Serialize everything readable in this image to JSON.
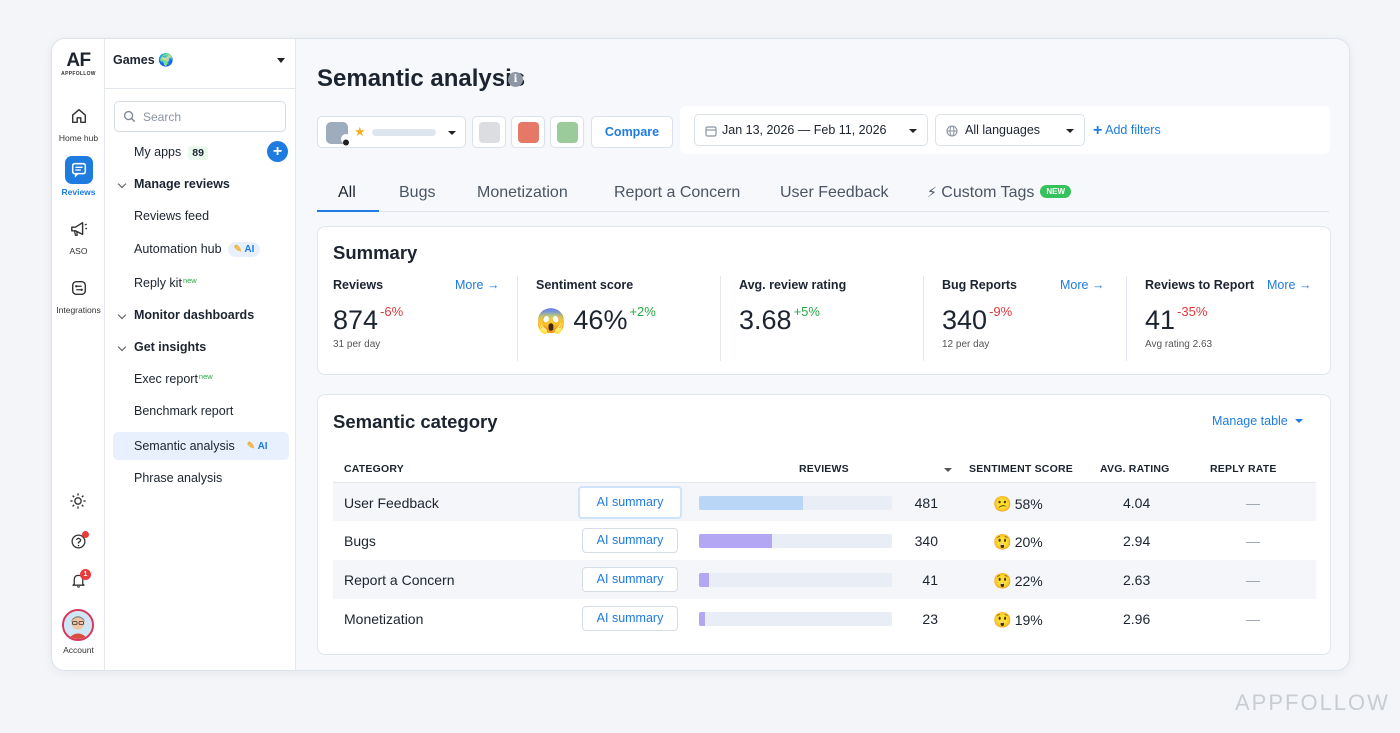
{
  "rail": {
    "logo": "AF",
    "logo_sub": "APPFOLLOW",
    "items": [
      {
        "label": "Home hub"
      },
      {
        "label": "Reviews"
      },
      {
        "label": "ASO"
      },
      {
        "label": "Integrations"
      }
    ],
    "notifications_count": "1",
    "account_label": "Account"
  },
  "sidebar": {
    "workspace": "Games 🌍",
    "search_placeholder": "Search",
    "my_apps": "My apps",
    "my_apps_count": "89",
    "manage_reviews": "Manage reviews",
    "reviews_feed": "Reviews feed",
    "automation_hub": "Automation hub",
    "reply_kit": "Reply kit",
    "monitor_dashboards": "Monitor dashboards",
    "get_insights": "Get insights",
    "exec_report": "Exec report",
    "benchmark_report": "Benchmark report",
    "semantic_analysis": "Semantic analysis",
    "phrase_analysis": "Phrase analysis",
    "new_tag": "new",
    "ai_tag": "AI"
  },
  "header": {
    "title": "Semantic analysis",
    "compare": "Compare",
    "date_range": "Jan 13, 2026 — Feb 11, 2026",
    "language": "All languages",
    "add_filters": "Add filters"
  },
  "tabs": [
    {
      "label": "All"
    },
    {
      "label": "Bugs"
    },
    {
      "label": "Monetization"
    },
    {
      "label": "Report a Concern"
    },
    {
      "label": "User Feedback"
    },
    {
      "label": "Custom Tags"
    }
  ],
  "tabs_new_badge": "NEW",
  "summary": {
    "title": "Summary",
    "more": "More",
    "metrics": [
      {
        "label": "Reviews",
        "value": "874",
        "delta": "-6%",
        "sub": "31 per day"
      },
      {
        "label": "Sentiment score",
        "value": "46%",
        "delta": "+2%",
        "sub": ""
      },
      {
        "label": "Avg. review rating",
        "value": "3.68",
        "delta": "+5%",
        "sub": ""
      },
      {
        "label": "Bug Reports",
        "value": "340",
        "delta": "-9%",
        "sub": "12 per day"
      },
      {
        "label": "Reviews to Report",
        "value": "41",
        "delta": "-35%",
        "sub": "Avg rating 2.63"
      }
    ]
  },
  "semantic": {
    "title": "Semantic category",
    "manage_table": "Manage table",
    "columns": [
      "CATEGORY",
      "REVIEWS",
      "SENTIMENT SCORE",
      "AVG. RATING",
      "REPLY RATE"
    ],
    "ai_summary": "AI summary",
    "rows": [
      {
        "category": "User Feedback",
        "reviews": "481",
        "reviews_share": 0.54,
        "sentiment": "58%",
        "rating": "4.04",
        "reply": "—"
      },
      {
        "category": "Bugs",
        "reviews": "340",
        "reviews_share": 0.38,
        "sentiment": "20%",
        "rating": "2.94",
        "reply": "—"
      },
      {
        "category": "Report a Concern",
        "reviews": "41",
        "reviews_share": 0.05,
        "sentiment": "22%",
        "rating": "2.63",
        "reply": "—"
      },
      {
        "category": "Monetization",
        "reviews": "23",
        "reviews_share": 0.03,
        "sentiment": "19%",
        "rating": "2.96",
        "reply": "—"
      }
    ]
  },
  "colors": {
    "accent": "#1e7be0",
    "negative": "#e2383b",
    "positive": "#27a844",
    "bar_user_feedback": "#b9d6f7",
    "bar_other": "#b3a6f2"
  },
  "watermark": "APPFOLLOW"
}
